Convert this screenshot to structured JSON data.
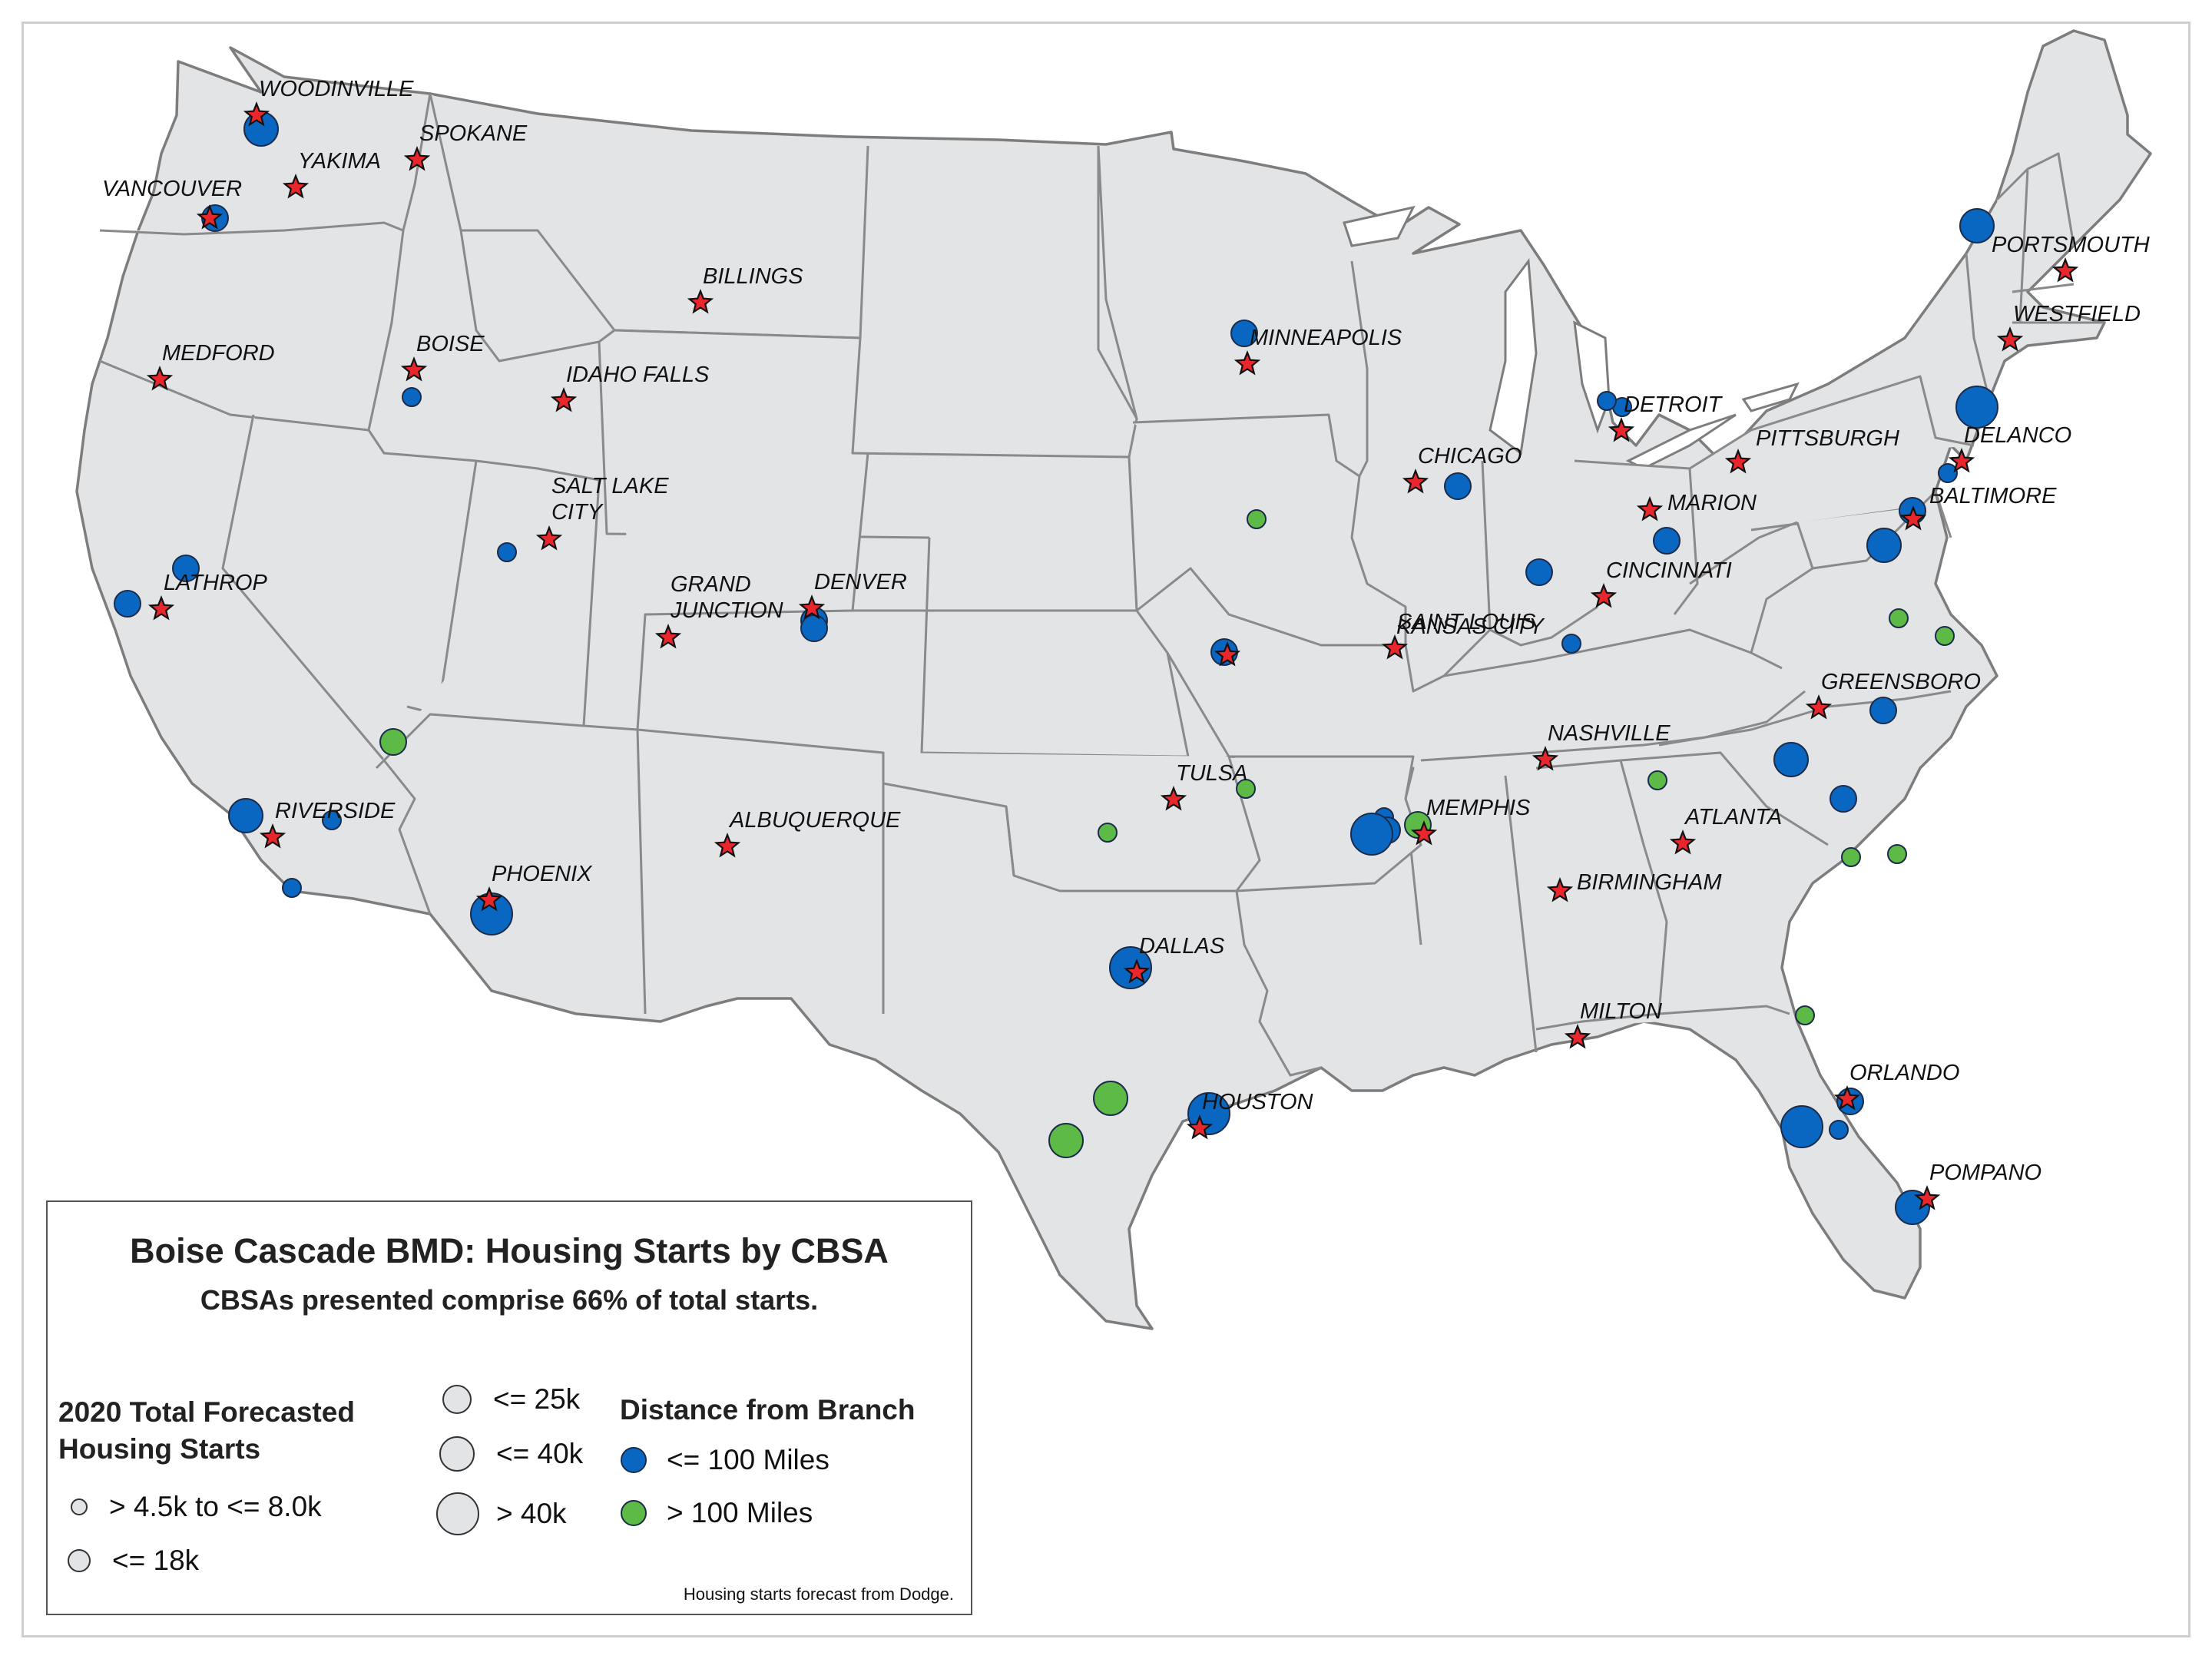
{
  "legend": {
    "title": "Boise Cascade BMD:  Housing Starts by CBSA",
    "subtitle": "CBSAs presented comprise 66% of total starts.",
    "size_heading_line1": "2020 Total Forecasted",
    "size_heading_line2": "Housing Starts",
    "size_classes": [
      {
        "label": "> 4.5k to <= 8.0k"
      },
      {
        "label": "<= 18k"
      },
      {
        "label": "<= 25k"
      },
      {
        "label": "<= 40k"
      },
      {
        "label": "> 40k"
      }
    ],
    "distance_heading": "Distance from Branch",
    "distance_classes": [
      {
        "label": "<= 100 Miles",
        "color": "#0a67c1"
      },
      {
        "label": "> 100 Miles",
        "color": "#5dba46"
      }
    ],
    "source": "Housing starts forecast from Dodge."
  },
  "colors": {
    "near": "#0a67c1",
    "far": "#5dba46",
    "branch_star": "#e8262c",
    "land": "#e3e4e6"
  },
  "branches": [
    {
      "label": "WOODINVILLE"
    },
    {
      "label": "SPOKANE"
    },
    {
      "label": "YAKIMA"
    },
    {
      "label": "VANCOUVER"
    },
    {
      "label": "BILLINGS"
    },
    {
      "label": "MEDFORD"
    },
    {
      "label": "BOISE"
    },
    {
      "label": "IDAHO FALLS"
    },
    {
      "label": "SALT LAKE",
      "label2": "CITY"
    },
    {
      "label": "LATHROP"
    },
    {
      "label": "GRAND",
      "label2": "JUNCTION"
    },
    {
      "label": "DENVER"
    },
    {
      "label": "RIVERSIDE"
    },
    {
      "label": "PHOENIX"
    },
    {
      "label": "ALBUQUERQUE"
    },
    {
      "label": "MINNEAPOLIS"
    },
    {
      "label": "KANSAS CITY"
    },
    {
      "label": "TULSA"
    },
    {
      "label": "DALLAS"
    },
    {
      "label": "HOUSTON"
    },
    {
      "label": "CHICAGO"
    },
    {
      "label": "SAINT LOUIS"
    },
    {
      "label": "DETROIT"
    },
    {
      "label": "MARION"
    },
    {
      "label": "CINCINNATI"
    },
    {
      "label": "NASHVILLE"
    },
    {
      "label": "MEMPHIS"
    },
    {
      "label": "ATLANTA"
    },
    {
      "label": "BIRMINGHAM"
    },
    {
      "label": "MILTON"
    },
    {
      "label": "ORLANDO"
    },
    {
      "label": "POMPANO"
    },
    {
      "label": "PITTSBURGH"
    },
    {
      "label": "GREENSBORO"
    },
    {
      "label": "BALTIMORE"
    },
    {
      "label": "DELANCO"
    },
    {
      "label": "WESTFIELD"
    },
    {
      "label": "PORTSMOUTH"
    }
  ],
  "cbsa_points": [
    {
      "size_class": 3,
      "distance": "near"
    },
    {
      "size_class": 2,
      "distance": "near"
    },
    {
      "size_class": 1,
      "distance": "near"
    },
    {
      "size_class": 1,
      "distance": "near"
    },
    {
      "size_class": 1,
      "distance": "near"
    },
    {
      "size_class": 2,
      "distance": "near"
    },
    {
      "size_class": 2,
      "distance": "near"
    },
    {
      "size_class": 2,
      "distance": "far"
    },
    {
      "size_class": 3,
      "distance": "near"
    },
    {
      "size_class": 1,
      "distance": "near"
    },
    {
      "size_class": 1,
      "distance": "near"
    },
    {
      "size_class": 4,
      "distance": "near"
    },
    {
      "size_class": 2,
      "distance": "near"
    },
    {
      "size_class": 2,
      "distance": "near"
    },
    {
      "size_class": 1,
      "distance": "far"
    },
    {
      "size_class": 2,
      "distance": "near"
    },
    {
      "size_class": 1,
      "distance": "near"
    },
    {
      "size_class": 1,
      "distance": "far"
    },
    {
      "size_class": 4,
      "distance": "near"
    },
    {
      "size_class": 3,
      "distance": "far"
    },
    {
      "size_class": 3,
      "distance": "far"
    },
    {
      "size_class": 4,
      "distance": "near"
    },
    {
      "size_class": 2,
      "distance": "near"
    },
    {
      "size_class": 1,
      "distance": "near"
    },
    {
      "size_class": 2,
      "distance": "near"
    },
    {
      "size_class": 2,
      "distance": "near"
    },
    {
      "size_class": 2,
      "distance": "near"
    },
    {
      "size_class": 1,
      "distance": "near"
    },
    {
      "size_class": 1,
      "distance": "near"
    },
    {
      "size_class": 2,
      "distance": "near"
    },
    {
      "size_class": 1,
      "distance": "far"
    },
    {
      "size_class": 4,
      "distance": "near"
    },
    {
      "size_class": 1,
      "distance": "near"
    },
    {
      "size_class": 1,
      "distance": "far"
    },
    {
      "size_class": 2,
      "distance": "far"
    },
    {
      "size_class": 3,
      "distance": "near"
    },
    {
      "size_class": 2,
      "distance": "near"
    },
    {
      "size_class": 3,
      "distance": "near"
    },
    {
      "size_class": 1,
      "distance": "near"
    },
    {
      "size_class": 1,
      "distance": "far"
    },
    {
      "size_class": 1,
      "distance": "far"
    },
    {
      "size_class": 3,
      "distance": "near"
    },
    {
      "size_class": 2,
      "distance": "near"
    },
    {
      "size_class": 4,
      "distance": "near"
    },
    {
      "size_class": 1,
      "distance": "far"
    },
    {
      "size_class": 1,
      "distance": "far"
    },
    {
      "size_class": 1,
      "distance": "far"
    },
    {
      "size_class": 2,
      "distance": "near"
    },
    {
      "size_class": 4,
      "distance": "near"
    },
    {
      "size_class": 1,
      "distance": "near"
    },
    {
      "size_class": 3,
      "distance": "near"
    },
    {
      "size_class": 2,
      "distance": "near"
    }
  ]
}
